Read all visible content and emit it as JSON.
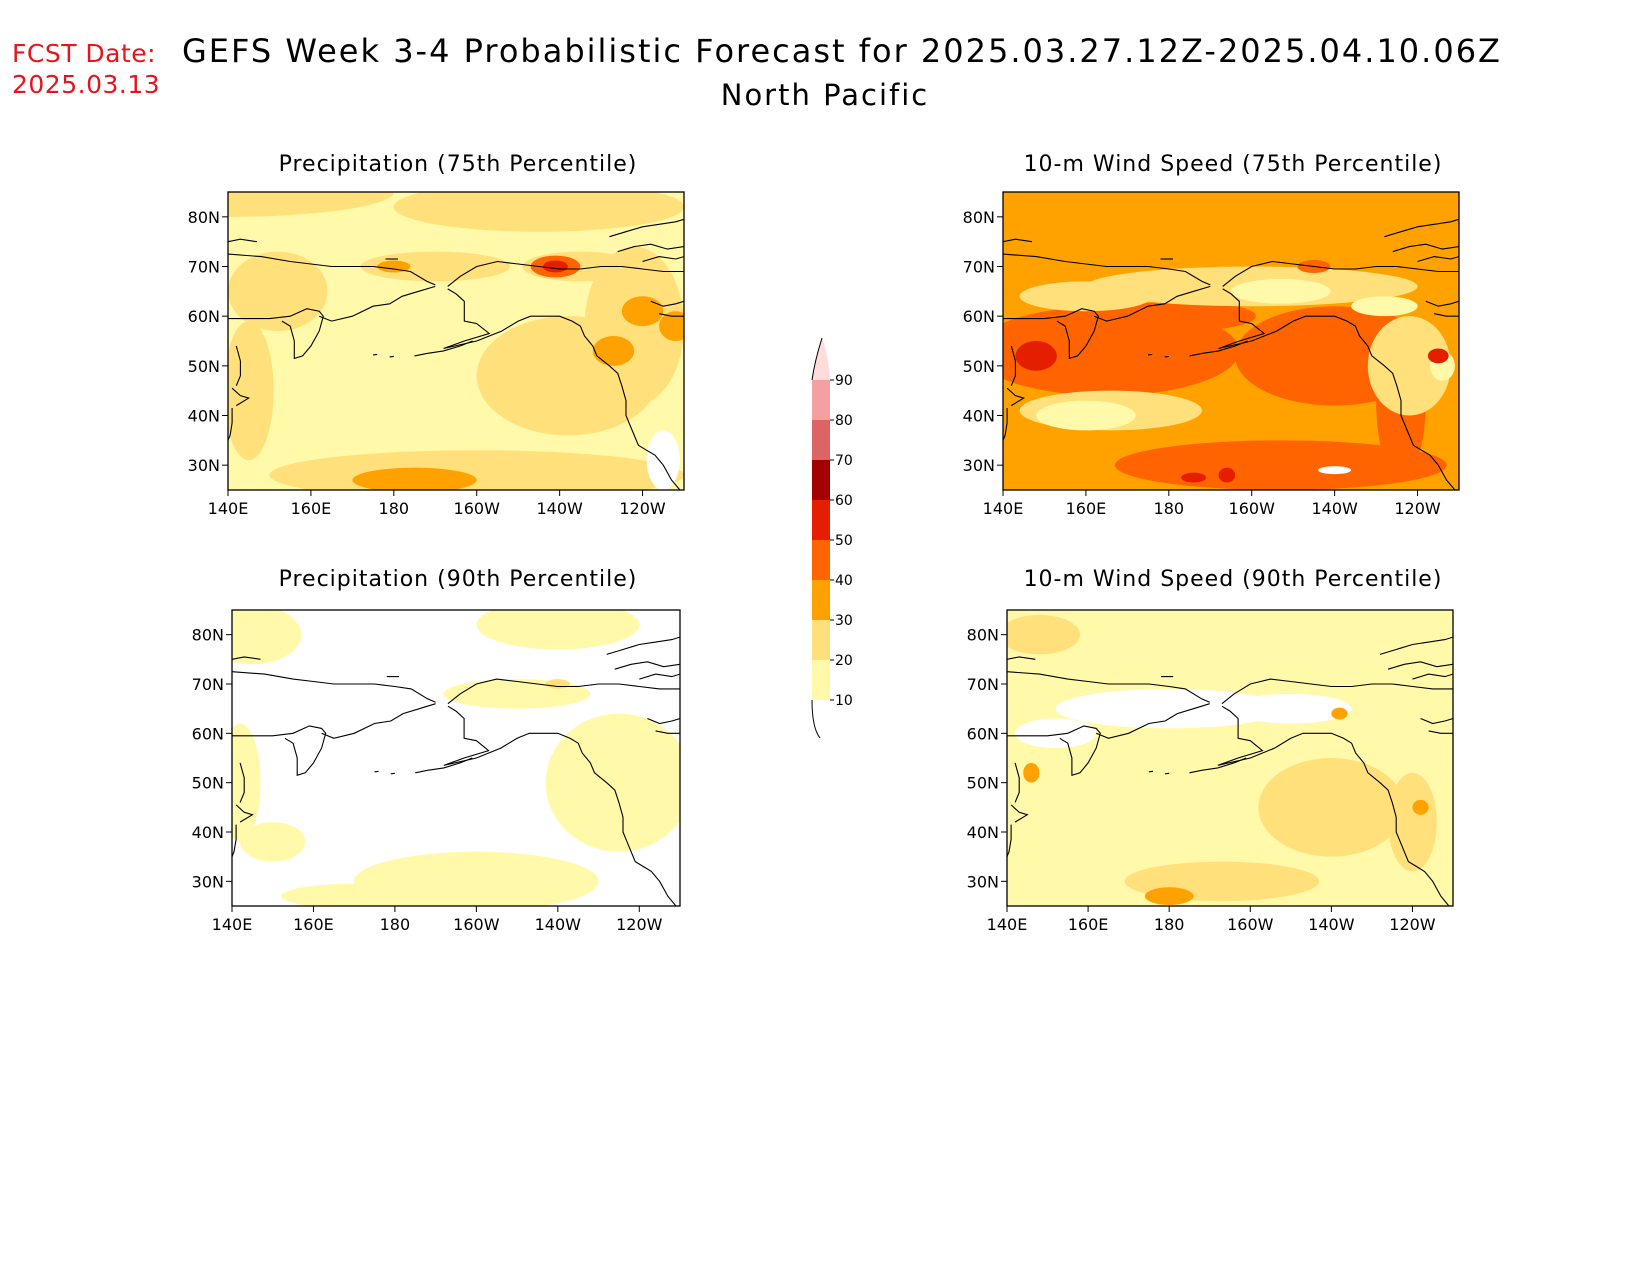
{
  "header": {
    "fcst_label": "FCST Date:",
    "fcst_date": "2025.03.13",
    "title": "GEFS Week 3-4 Probabilistic Forecast for 2025.03.27.12Z-2025.04.10.06Z",
    "region": "North Pacific"
  },
  "colors": {
    "white": "#ffffff",
    "c10": "#fff9a9",
    "c20": "#ffe07a",
    "c30": "#ffa200",
    "c40": "#ff6400",
    "c50": "#e61e00",
    "c60": "#a50000",
    "c70": "#dc6464",
    "c80": "#f5a0a0",
    "c90": "#ffdcdc",
    "coast": "#000000"
  },
  "colorbar": {
    "labels": [
      "10",
      "20",
      "30",
      "40",
      "50",
      "60",
      "70",
      "80",
      "90"
    ],
    "colors": [
      "#fff9a9",
      "#ffe07a",
      "#ffa200",
      "#ff6400",
      "#e61e00",
      "#a50000",
      "#dc6464",
      "#f5a0a0"
    ],
    "top_color": "#ffdcdc"
  },
  "axes": {
    "lon_labels": [
      "140E",
      "160E",
      "180",
      "160W",
      "140W",
      "120W"
    ],
    "lon_values": [
      140,
      160,
      180,
      200,
      220,
      240
    ],
    "lat_labels": [
      "80N",
      "70N",
      "60N",
      "50N",
      "40N",
      "30N"
    ],
    "lat_values": [
      80,
      70,
      60,
      50,
      40,
      30
    ],
    "lon_range": [
      140,
      250
    ],
    "lat_range": [
      25,
      85
    ]
  },
  "panels": [
    {
      "id": "precip75",
      "title": "Precipitation (75th Percentile)",
      "background": "c10",
      "blobs": [
        {
          "lon": 140,
          "lat": 85,
          "rx": 40,
          "ry": 5,
          "c": "c20"
        },
        {
          "lon": 215,
          "lat": 82,
          "rx": 35,
          "ry": 5,
          "c": "c20"
        },
        {
          "lon": 152,
          "lat": 65,
          "rx": 12,
          "ry": 8,
          "c": "c20"
        },
        {
          "lon": 145,
          "lat": 45,
          "rx": 6,
          "ry": 14,
          "c": "c20"
        },
        {
          "lon": 200,
          "lat": 28,
          "rx": 50,
          "ry": 5,
          "c": "c20"
        },
        {
          "lon": 222,
          "lat": 48,
          "rx": 22,
          "ry": 12,
          "c": "c20"
        },
        {
          "lon": 238,
          "lat": 58,
          "rx": 12,
          "ry": 16,
          "c": "c20"
        },
        {
          "lon": 190,
          "lat": 70,
          "rx": 18,
          "ry": 3,
          "c": "c20"
        },
        {
          "lon": 225,
          "lat": 70,
          "rx": 14,
          "ry": 3,
          "c": "c20"
        },
        {
          "lon": 185,
          "lat": 27,
          "rx": 15,
          "ry": 2.5,
          "c": "c30"
        },
        {
          "lon": 240,
          "lat": 61,
          "rx": 5,
          "ry": 3,
          "c": "c30"
        },
        {
          "lon": 248,
          "lat": 58,
          "rx": 4,
          "ry": 3,
          "c": "c30"
        },
        {
          "lon": 233,
          "lat": 53,
          "rx": 5,
          "ry": 3,
          "c": "c30"
        },
        {
          "lon": 180,
          "lat": 70,
          "rx": 4,
          "ry": 1.2,
          "c": "c30"
        },
        {
          "lon": 219,
          "lat": 70,
          "rx": 6,
          "ry": 2.2,
          "c": "c40"
        },
        {
          "lon": 219,
          "lat": 70,
          "rx": 3,
          "ry": 1.2,
          "c": "c50"
        },
        {
          "lon": 245,
          "lat": 31,
          "rx": 4,
          "ry": 6,
          "c": "white"
        }
      ]
    },
    {
      "id": "wind75",
      "title": "10-m Wind Speed (75th Percentile)",
      "background": "c30",
      "blobs": [
        {
          "lon": 165,
          "lat": 53,
          "rx": 32,
          "ry": 9,
          "c": "c40"
        },
        {
          "lon": 207,
          "lat": 30,
          "rx": 40,
          "ry": 5,
          "c": "c40"
        },
        {
          "lon": 220,
          "lat": 52,
          "rx": 24,
          "ry": 10,
          "c": "c40"
        },
        {
          "lon": 183,
          "lat": 60,
          "rx": 18,
          "ry": 3,
          "c": "c40"
        },
        {
          "lon": 236,
          "lat": 43,
          "rx": 6,
          "ry": 16,
          "c": "c40"
        },
        {
          "lon": 148,
          "lat": 52,
          "rx": 5,
          "ry": 3,
          "c": "c50"
        },
        {
          "lon": 194,
          "lat": 28,
          "rx": 2,
          "ry": 1.5,
          "c": "c50"
        },
        {
          "lon": 186,
          "lat": 27.5,
          "rx": 3,
          "ry": 1,
          "c": "c50"
        },
        {
          "lon": 166,
          "lat": 41,
          "rx": 22,
          "ry": 4,
          "c": "c20"
        },
        {
          "lon": 160,
          "lat": 40,
          "rx": 12,
          "ry": 3,
          "c": "c10"
        },
        {
          "lon": 200,
          "lat": 66,
          "rx": 40,
          "ry": 4,
          "c": "c20"
        },
        {
          "lon": 160,
          "lat": 64,
          "rx": 16,
          "ry": 3,
          "c": "c20"
        },
        {
          "lon": 238,
          "lat": 50,
          "rx": 10,
          "ry": 10,
          "c": "c20"
        },
        {
          "lon": 207,
          "lat": 65,
          "rx": 12,
          "ry": 2.5,
          "c": "c10"
        },
        {
          "lon": 232,
          "lat": 62,
          "rx": 8,
          "ry": 2,
          "c": "c10"
        },
        {
          "lon": 246,
          "lat": 50,
          "rx": 3,
          "ry": 3,
          "c": "c10"
        },
        {
          "lon": 215,
          "lat": 70,
          "rx": 4,
          "ry": 1.3,
          "c": "c40"
        },
        {
          "lon": 245,
          "lat": 52,
          "rx": 2.5,
          "ry": 1.5,
          "c": "c50"
        },
        {
          "lon": 220,
          "lat": 29,
          "rx": 4,
          "ry": 0.8,
          "c": "white"
        }
      ]
    },
    {
      "id": "precip90",
      "title": "Precipitation (90th Percentile)",
      "background": "white",
      "blobs": [
        {
          "lon": 145,
          "lat": 80,
          "rx": 12,
          "ry": 6,
          "c": "c10"
        },
        {
          "lon": 220,
          "lat": 82,
          "rx": 20,
          "ry": 5,
          "c": "c10"
        },
        {
          "lon": 235,
          "lat": 50,
          "rx": 18,
          "ry": 14,
          "c": "c10"
        },
        {
          "lon": 200,
          "lat": 30,
          "rx": 30,
          "ry": 6,
          "c": "c10"
        },
        {
          "lon": 142,
          "lat": 50,
          "rx": 5,
          "ry": 12,
          "c": "c10"
        },
        {
          "lon": 150,
          "lat": 38,
          "rx": 8,
          "ry": 4,
          "c": "c10"
        },
        {
          "lon": 210,
          "lat": 68,
          "rx": 18,
          "ry": 3,
          "c": "c10"
        },
        {
          "lon": 170,
          "lat": 27,
          "rx": 18,
          "ry": 2.5,
          "c": "c10"
        },
        {
          "lon": 220,
          "lat": 70,
          "rx": 3,
          "ry": 1,
          "c": "c20"
        }
      ]
    },
    {
      "id": "wind90",
      "title": "10-m Wind Speed (90th Percentile)",
      "background": "c10",
      "blobs": [
        {
          "lon": 180,
          "lat": 65,
          "rx": 28,
          "ry": 4,
          "c": "white"
        },
        {
          "lon": 210,
          "lat": 65,
          "rx": 15,
          "ry": 3,
          "c": "white"
        },
        {
          "lon": 152,
          "lat": 60,
          "rx": 10,
          "ry": 3,
          "c": "white"
        },
        {
          "lon": 220,
          "lat": 45,
          "rx": 18,
          "ry": 10,
          "c": "c20"
        },
        {
          "lon": 193,
          "lat": 30,
          "rx": 24,
          "ry": 4,
          "c": "c20"
        },
        {
          "lon": 148,
          "lat": 80,
          "rx": 10,
          "ry": 4,
          "c": "c20"
        },
        {
          "lon": 240,
          "lat": 42,
          "rx": 6,
          "ry": 10,
          "c": "c20"
        },
        {
          "lon": 180,
          "lat": 27,
          "rx": 6,
          "ry": 1.8,
          "c": "c30"
        },
        {
          "lon": 146,
          "lat": 52,
          "rx": 2,
          "ry": 2,
          "c": "c30"
        },
        {
          "lon": 242,
          "lat": 45,
          "rx": 2,
          "ry": 1.5,
          "c": "c30"
        },
        {
          "lon": 222,
          "lat": 64,
          "rx": 2,
          "ry": 1.2,
          "c": "c30"
        }
      ]
    }
  ]
}
